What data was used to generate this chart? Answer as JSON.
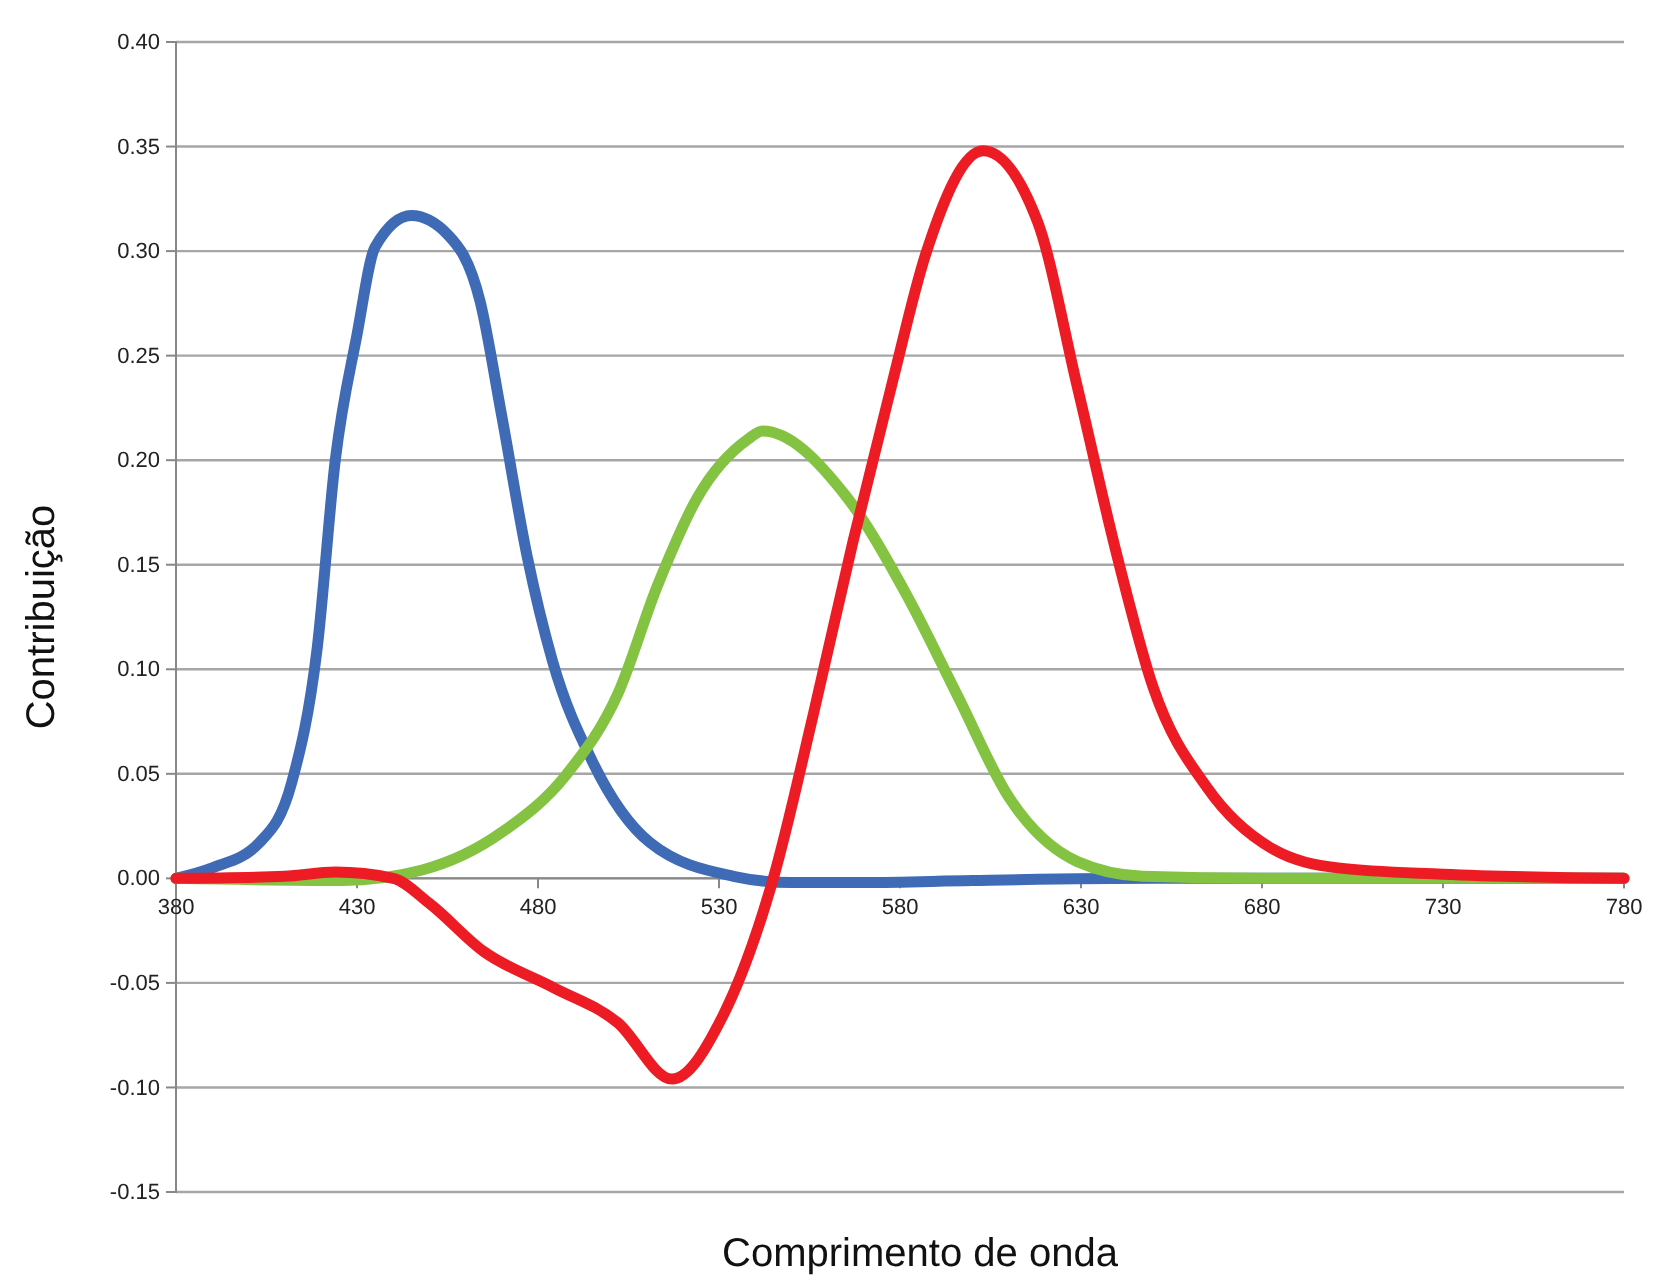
{
  "chart_data": {
    "type": "line",
    "xlabel": "Comprimento de onda",
    "ylabel": "Contribuição",
    "xlim": [
      380,
      780
    ],
    "xticks": [
      380,
      430,
      480,
      530,
      580,
      630,
      680,
      730,
      780
    ],
    "ylim": [
      -0.15,
      0.4
    ],
    "yticks": [
      {
        "value": -0.15,
        "label": "-0.15"
      },
      {
        "value": -0.1,
        "label": "-0.10"
      },
      {
        "value": -0.05,
        "label": "-0.05"
      },
      {
        "value": 0,
        "label": "0.00"
      },
      {
        "value": 0.05,
        "label": "0.05"
      },
      {
        "value": 0.1,
        "label": "0.10"
      },
      {
        "value": 0.15,
        "label": "0.15"
      },
      {
        "value": 0.2,
        "label": "0.20"
      },
      {
        "value": 0.25,
        "label": "0.25"
      },
      {
        "value": 0.3,
        "label": "0.30"
      },
      {
        "value": 0.35,
        "label": "0.35"
      },
      {
        "value": 0.4,
        "label": "0.40"
      }
    ],
    "grid": "y",
    "marker": "none",
    "line_style": "solid",
    "series": [
      {
        "color": "#3f6ab5",
        "x": [
          380,
          390,
          403,
          412,
          419,
          424,
          430,
          435,
          445,
          455,
          464,
          470,
          477,
          484,
          495,
          511,
          534,
          550,
          570,
          600,
          650,
          780
        ],
        "values": [
          0,
          0.005,
          0.017,
          0.046,
          0.11,
          0.2,
          0.26,
          0.302,
          0.317,
          0.308,
          0.276,
          0.221,
          0.154,
          0.104,
          0.056,
          0.017,
          0.001,
          -0.002,
          -0.002,
          -0.001,
          0,
          0
        ]
      },
      {
        "color": "#84c341",
        "x": [
          380,
          426,
          448,
          470,
          488,
          502,
          513,
          524,
          538,
          542,
          565,
          582,
          596,
          610,
          629,
          647,
          680,
          780
        ],
        "values": [
          0,
          -0.001,
          0.004,
          0.022,
          0.05,
          0.088,
          0.14,
          0.182,
          0.21,
          0.214,
          0.183,
          0.135,
          0.087,
          0.039,
          0.008,
          0.001,
          0,
          0
        ]
      },
      {
        "color": "#ed1c24",
        "x": [
          380,
          410,
          424,
          440,
          450,
          465,
          484,
          502,
          517,
          531,
          545,
          556,
          567,
          578,
          587,
          603,
          618,
          629,
          640,
          650,
          665,
          683,
          701,
          730,
          780
        ],
        "values": [
          0,
          0.001,
          0.003,
          0,
          -0.012,
          -0.035,
          -0.052,
          -0.069,
          -0.096,
          -0.066,
          0,
          0.078,
          0.161,
          0.238,
          0.298,
          0.348,
          0.314,
          0.235,
          0.154,
          0.091,
          0.043,
          0.014,
          0.005,
          0.002,
          0
        ]
      }
    ]
  }
}
